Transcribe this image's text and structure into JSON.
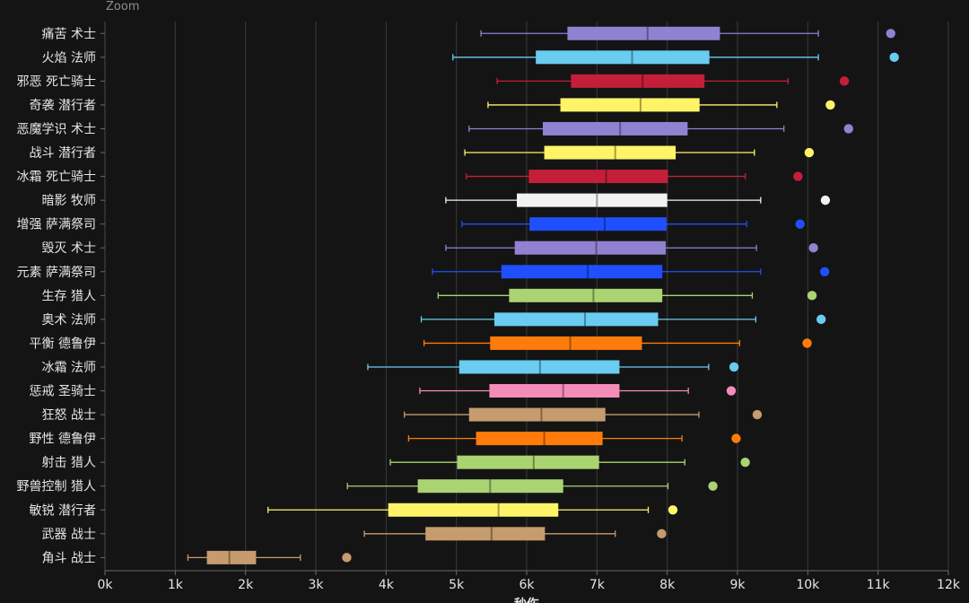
{
  "toolbar": {
    "zoom_label": "Zoom"
  },
  "chart_data": {
    "type": "boxplot",
    "orientation": "horizontal",
    "xlabel": "秒伤",
    "xlim": [
      0,
      12000
    ],
    "x_ticks": [
      0,
      1000,
      2000,
      3000,
      4000,
      5000,
      6000,
      7000,
      8000,
      9000,
      10000,
      11000,
      12000
    ],
    "x_tick_labels": [
      "0k",
      "1k",
      "2k",
      "3k",
      "4k",
      "5k",
      "6k",
      "7k",
      "8k",
      "9k",
      "10k",
      "11k",
      "12k"
    ],
    "grid": true,
    "series": [
      {
        "name": "痛苦 术士",
        "min": 5350,
        "q1": 6580,
        "median": 7720,
        "q3": 8750,
        "max": 10150,
        "outlier": 11180,
        "color": "#9181d1"
      },
      {
        "name": "火焰 法师",
        "min": 4950,
        "q1": 6130,
        "median": 7500,
        "q3": 8600,
        "max": 10150,
        "outlier": 11230,
        "color": "#69ccf0"
      },
      {
        "name": "邪恶 死亡骑士",
        "min": 5580,
        "q1": 6630,
        "median": 7650,
        "q3": 8530,
        "max": 9720,
        "outlier": 10520,
        "color": "#c41e3a"
      },
      {
        "name": "奇袭 潜行者",
        "min": 5450,
        "q1": 6480,
        "median": 7620,
        "q3": 8460,
        "max": 9560,
        "outlier": 10320,
        "color": "#fff468"
      },
      {
        "name": "恶魔学识 术士",
        "min": 5180,
        "q1": 6230,
        "median": 7330,
        "q3": 8290,
        "max": 9660,
        "outlier": 10580,
        "color": "#9181d1"
      },
      {
        "name": "战斗 潜行者",
        "min": 5120,
        "q1": 6250,
        "median": 7260,
        "q3": 8120,
        "max": 9240,
        "outlier": 10020,
        "color": "#fff468"
      },
      {
        "name": "冰霜 死亡骑士",
        "min": 5140,
        "q1": 6030,
        "median": 7130,
        "q3": 8010,
        "max": 9110,
        "outlier": 9860,
        "color": "#c41e3a"
      },
      {
        "name": "暗影 牧师",
        "min": 4850,
        "q1": 5860,
        "median": 7000,
        "q3": 8000,
        "max": 9330,
        "outlier": 10250,
        "color": "#f2f2f2"
      },
      {
        "name": "增强 萨满祭司",
        "min": 5080,
        "q1": 6040,
        "median": 7110,
        "q3": 7990,
        "max": 9130,
        "outlier": 9890,
        "color": "#1f4fff"
      },
      {
        "name": "毁灭 术士",
        "min": 4850,
        "q1": 5830,
        "median": 6990,
        "q3": 7980,
        "max": 9270,
        "outlier": 10080,
        "color": "#9181d1"
      },
      {
        "name": "元素 萨满祭司",
        "min": 4660,
        "q1": 5640,
        "median": 6870,
        "q3": 7930,
        "max": 9330,
        "outlier": 10240,
        "color": "#1f4fff"
      },
      {
        "name": "生存 猎人",
        "min": 4740,
        "q1": 5750,
        "median": 6950,
        "q3": 7930,
        "max": 9210,
        "outlier": 10060,
        "color": "#aad372"
      },
      {
        "name": "奥术 法师",
        "min": 4500,
        "q1": 5540,
        "median": 6830,
        "q3": 7870,
        "max": 9260,
        "outlier": 10190,
        "color": "#69ccf0"
      },
      {
        "name": "平衡 德鲁伊",
        "min": 4540,
        "q1": 5480,
        "median": 6620,
        "q3": 7640,
        "max": 9030,
        "outlier": 9990,
        "color": "#ff7c0a"
      },
      {
        "name": "冰霜 法师",
        "min": 3740,
        "q1": 5040,
        "median": 6190,
        "q3": 7320,
        "max": 8590,
        "outlier": 8950,
        "color": "#69ccf0"
      },
      {
        "name": "惩戒 圣骑士",
        "min": 4480,
        "q1": 5470,
        "median": 6520,
        "q3": 7320,
        "max": 8300,
        "outlier": 8910,
        "color": "#f48cba"
      },
      {
        "name": "狂怒 战士",
        "min": 4260,
        "q1": 5180,
        "median": 6210,
        "q3": 7120,
        "max": 8450,
        "outlier": 9280,
        "color": "#c69b6d"
      },
      {
        "name": "野性 德鲁伊",
        "min": 4320,
        "q1": 5280,
        "median": 6250,
        "q3": 7080,
        "max": 8210,
        "outlier": 8980,
        "color": "#ff7c0a"
      },
      {
        "name": "射击 猎人",
        "min": 4060,
        "q1": 5010,
        "median": 6100,
        "q3": 7030,
        "max": 8250,
        "outlier": 9110,
        "color": "#aad372"
      },
      {
        "name": "野兽控制 猎人",
        "min": 3450,
        "q1": 4450,
        "median": 5480,
        "q3": 6520,
        "max": 8010,
        "outlier": 8650,
        "color": "#aad372"
      },
      {
        "name": "敏锐 潜行者",
        "min": 2320,
        "q1": 4030,
        "median": 5600,
        "q3": 6450,
        "max": 7730,
        "outlier": 8080,
        "color": "#fff468"
      },
      {
        "name": "武器 战士",
        "min": 3690,
        "q1": 4560,
        "median": 5500,
        "q3": 6260,
        "max": 7260,
        "outlier": 7920,
        "color": "#c69b6d"
      },
      {
        "name": "角斗 战士",
        "min": 1180,
        "q1": 1450,
        "median": 1770,
        "q3": 2150,
        "max": 2780,
        "outlier": 3440,
        "color": "#c69b6d"
      }
    ]
  }
}
